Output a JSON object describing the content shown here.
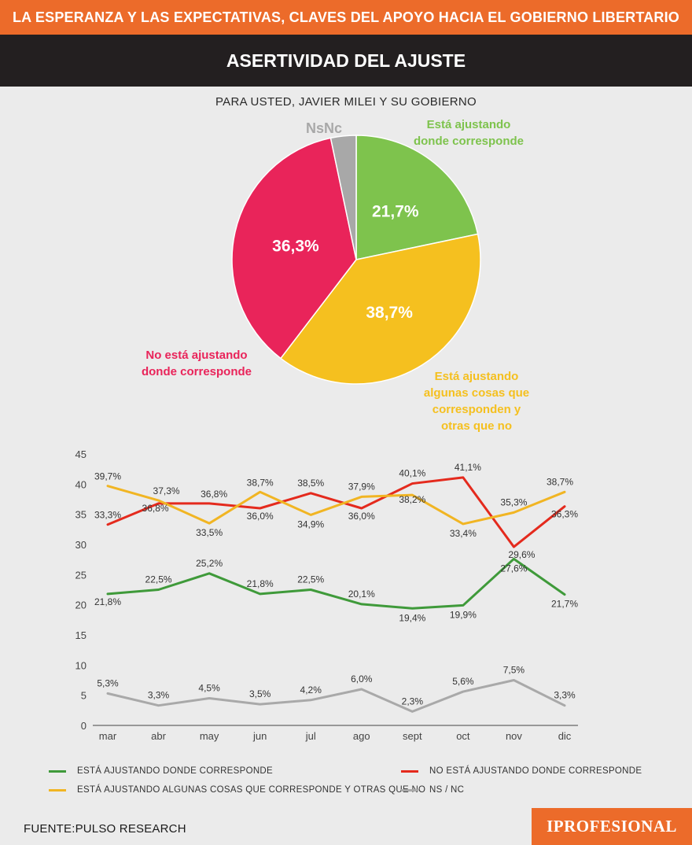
{
  "header": {
    "banner_title": "LA ESPERANZA Y LAS EXPECTATIVAS, CLAVES DEL APOYO HACIA EL GOBIERNO LIBERTARIO",
    "section_title": "ASERTIVIDAD DEL AJUSTE",
    "question": "PARA USTED, JAVIER MILEI Y SU GOBIERNO"
  },
  "colors": {
    "green": "#7ec34d",
    "yellow": "#f5c01f",
    "red": "#e9245a",
    "gray": "#a8a8a8",
    "line_green": "#3f9a3a",
    "line_red": "#e42a1d",
    "line_yellow": "#f1b523",
    "line_gray": "#a9a9a9",
    "orange": "#ec6b2a"
  },
  "chart_data": [
    {
      "type": "pie",
      "title": "PARA USTED, JAVIER MILEI Y SU GOBIERNO",
      "slices": [
        {
          "key": "green",
          "label_lines": [
            "Está ajustando",
            "donde corresponde"
          ],
          "value": 21.7,
          "value_label": "21,7%"
        },
        {
          "key": "yellow",
          "label_lines": [
            "Está ajustando",
            "algunas cosas que",
            "corresponden y",
            "otras que no"
          ],
          "value": 38.7,
          "value_label": "38,7%"
        },
        {
          "key": "red",
          "label_lines": [
            "No está ajustando",
            "donde corresponde"
          ],
          "value": 36.3,
          "value_label": "36,3%"
        },
        {
          "key": "gray",
          "label_lines": [
            "NsNc"
          ],
          "value": 3.3,
          "value_label": ""
        }
      ]
    },
    {
      "type": "line",
      "categories": [
        "mar",
        "abr",
        "may",
        "jun",
        "jul",
        "ago",
        "sept",
        "oct",
        "nov",
        "dic"
      ],
      "yticks": [
        0,
        5,
        10,
        15,
        20,
        25,
        30,
        35,
        40,
        45
      ],
      "ylim": [
        0,
        45
      ],
      "series": [
        {
          "key": "line_green",
          "name": "ESTÁ AJUSTANDO DONDE CORRESPONDE",
          "values": [
            21.8,
            22.5,
            25.2,
            21.8,
            22.5,
            20.1,
            19.4,
            19.9,
            27.6,
            21.7
          ],
          "labels": [
            "21,8%",
            "22,5%",
            "25,2%",
            "21,8%",
            "22,5%",
            "20,1%",
            "19,4%",
            "19,9%",
            "27,6%",
            "21,7%"
          ]
        },
        {
          "key": "line_red",
          "name": "NO ESTÁ AJUSTANDO DONDE CORRESPONDE",
          "values": [
            33.3,
            36.8,
            36.8,
            36.0,
            38.5,
            36.0,
            40.1,
            41.1,
            29.6,
            36.3
          ],
          "labels": [
            "33,3%",
            "36,8%",
            "36,8%",
            "36,0%",
            "38,5%",
            "36,0%",
            "40,1%",
            "41,1%",
            "29,6%",
            "36,3%"
          ]
        },
        {
          "key": "line_yellow",
          "name": "ESTÁ AJUSTANDO ALGUNAS COSAS QUE CORRESPONDE Y OTRAS QUE NO",
          "values": [
            39.7,
            37.3,
            33.5,
            38.7,
            34.9,
            37.9,
            38.2,
            33.4,
            35.3,
            38.7
          ],
          "labels": [
            "39,7%",
            "37,3%",
            "33,5%",
            "38,7%",
            "34,9%",
            "37,9%",
            "38,2%",
            "33,4%",
            "35,3%",
            "38,7%"
          ]
        },
        {
          "key": "line_gray",
          "name": "NS / NC",
          "values": [
            5.3,
            3.3,
            4.5,
            3.5,
            4.2,
            6.0,
            2.3,
            5.6,
            7.5,
            3.3
          ],
          "labels": [
            "5,3%",
            "3,3%",
            "4,5%",
            "3,5%",
            "4,2%",
            "6,0%",
            "2,3%",
            "5,6%",
            "7,5%",
            "3,3%"
          ]
        }
      ]
    }
  ],
  "footer": {
    "source": "FUENTE:PULSO RESEARCH",
    "brand": "IPROFESIONAL"
  }
}
